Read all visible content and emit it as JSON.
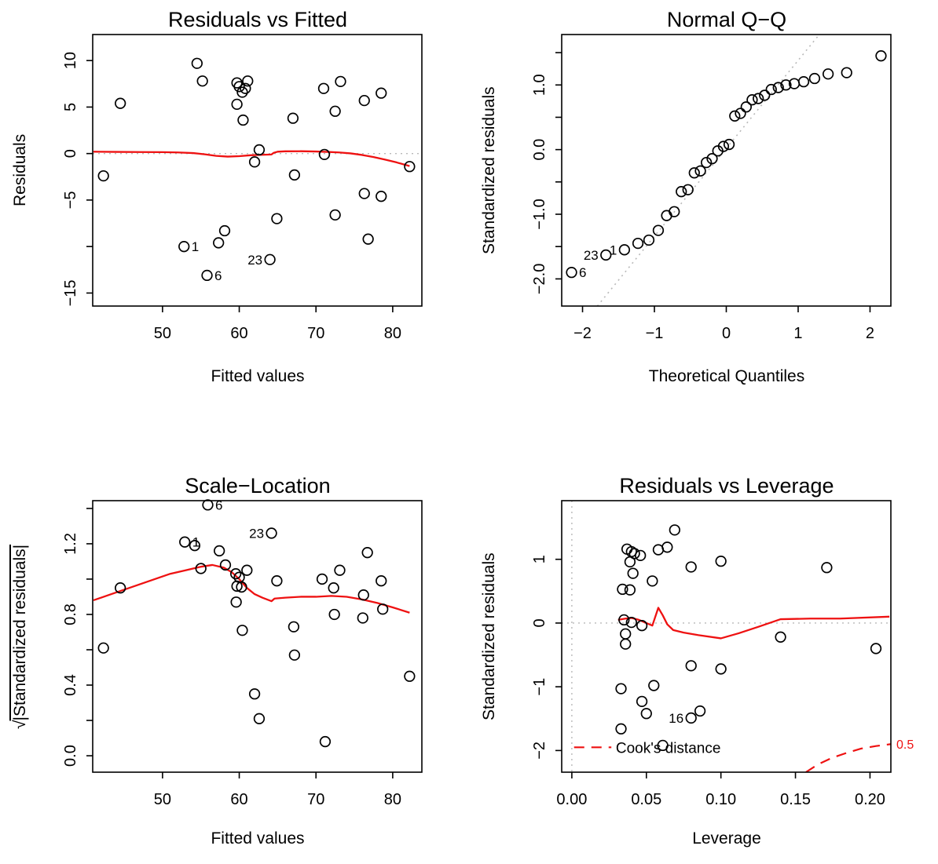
{
  "figure": {
    "background": "#ffffff",
    "accent_red": "#ee1111",
    "ref_gray": "#b9b9b9",
    "point_color": "#000000"
  },
  "chart_data": [
    {
      "type": "scatter",
      "panel": "top-left",
      "title": "Residuals vs Fitted",
      "xlabel": "Fitted values",
      "ylabel": "Residuals",
      "xlim": [
        40.9,
        83.8
      ],
      "ylim": [
        -16.4,
        12.8
      ],
      "grid": false,
      "xticks": [
        {
          "v": 50,
          "label": "50"
        },
        {
          "v": 60,
          "label": "60"
        },
        {
          "v": 70,
          "label": "70"
        },
        {
          "v": 80,
          "label": "80"
        }
      ],
      "yticks": [
        {
          "v": 10,
          "label": "10"
        },
        {
          "v": 5,
          "label": "5"
        },
        {
          "v": 0,
          "label": "0"
        },
        {
          "v": -5,
          "label": "−5"
        },
        {
          "v": -10,
          "label": ""
        },
        {
          "v": -15,
          "label": "−15"
        }
      ],
      "points": [
        [
          42.3,
          -2.4
        ],
        [
          44.5,
          5.4
        ],
        [
          52.8,
          -10.0
        ],
        [
          54.5,
          9.7
        ],
        [
          55.2,
          7.8
        ],
        [
          55.8,
          -13.1
        ],
        [
          57.3,
          -9.6
        ],
        [
          58.1,
          -8.3
        ],
        [
          59.7,
          7.6
        ],
        [
          60.0,
          7.2
        ],
        [
          61.1,
          7.8
        ],
        [
          60.4,
          6.6
        ],
        [
          59.7,
          5.3
        ],
        [
          60.5,
          3.6
        ],
        [
          62.0,
          -0.9
        ],
        [
          62.6,
          0.4
        ],
        [
          64.0,
          -11.4
        ],
        [
          64.9,
          -7.0
        ],
        [
          67.0,
          3.8
        ],
        [
          67.2,
          -2.3
        ],
        [
          71.0,
          7.0
        ],
        [
          71.1,
          -0.1
        ],
        [
          72.5,
          4.55
        ],
        [
          72.5,
          -6.6
        ],
        [
          73.2,
          7.75
        ],
        [
          76.3,
          5.7
        ],
        [
          76.3,
          -4.3
        ],
        [
          76.8,
          -9.2
        ],
        [
          78.5,
          6.5
        ],
        [
          78.5,
          -4.6
        ],
        [
          82.2,
          -1.4
        ],
        [
          60.8,
          7.0
        ]
      ],
      "point_labels": [
        {
          "label": "1",
          "x": 52.8,
          "y": -10.0,
          "side": "right"
        },
        {
          "label": "6",
          "x": 55.8,
          "y": -13.1,
          "side": "right"
        },
        {
          "label": "23",
          "x": 64.0,
          "y": -11.4,
          "side": "left"
        }
      ],
      "smooth_line": [
        [
          41.0,
          0.2
        ],
        [
          44,
          0.18
        ],
        [
          47,
          0.16
        ],
        [
          50,
          0.15
        ],
        [
          52,
          0.12
        ],
        [
          54,
          0.05
        ],
        [
          55.5,
          -0.08
        ],
        [
          57,
          -0.25
        ],
        [
          58.5,
          -0.33
        ],
        [
          60,
          -0.28
        ],
        [
          61.5,
          -0.18
        ],
        [
          63,
          -0.13
        ],
        [
          64.2,
          -0.1
        ],
        [
          64.5,
          0.08
        ],
        [
          65,
          0.2
        ],
        [
          66,
          0.24
        ],
        [
          68,
          0.25
        ],
        [
          70,
          0.22
        ],
        [
          71.5,
          0.18
        ],
        [
          73,
          0.12
        ],
        [
          74.5,
          0.02
        ],
        [
          76,
          -0.15
        ],
        [
          77.5,
          -0.38
        ],
        [
          79,
          -0.65
        ],
        [
          80.5,
          -0.95
        ],
        [
          82.2,
          -1.35
        ]
      ],
      "ref_lines": [
        {
          "orient": "h",
          "at": 0
        }
      ]
    },
    {
      "type": "scatter",
      "panel": "top-right",
      "title": "Normal Q−Q",
      "xlabel": "Theoretical Quantiles",
      "ylabel": "Standardized residuals",
      "xlim": [
        -2.29,
        2.29
      ],
      "ylim": [
        -2.42,
        1.78
      ],
      "grid": false,
      "xticks": [
        {
          "v": -2,
          "label": "−2"
        },
        {
          "v": -1,
          "label": "−1"
        },
        {
          "v": 0,
          "label": "0"
        },
        {
          "v": 1,
          "label": "1"
        },
        {
          "v": 2,
          "label": "2"
        }
      ],
      "yticks": [
        {
          "v": 1.5,
          "label": ""
        },
        {
          "v": 1.0,
          "label": "1.0"
        },
        {
          "v": 0.5,
          "label": ""
        },
        {
          "v": 0.0,
          "label": "0.0"
        },
        {
          "v": -0.5,
          "label": ""
        },
        {
          "v": -1.0,
          "label": "−1.0"
        },
        {
          "v": -1.5,
          "label": ""
        },
        {
          "v": -2.0,
          "label": "−2.0"
        }
      ],
      "points": [
        [
          -2.153,
          -1.9
        ],
        [
          -1.675,
          -1.63
        ],
        [
          -1.417,
          -1.55
        ],
        [
          -1.229,
          -1.45
        ],
        [
          -1.077,
          -1.4
        ],
        [
          -0.946,
          -1.25
        ],
        [
          -0.83,
          -1.02
        ],
        [
          -0.724,
          -0.96
        ],
        [
          -0.626,
          -0.65
        ],
        [
          -0.533,
          -0.62
        ],
        [
          -0.445,
          -0.36
        ],
        [
          -0.36,
          -0.33
        ],
        [
          -0.277,
          -0.2
        ],
        [
          -0.197,
          -0.14
        ],
        [
          -0.118,
          -0.02
        ],
        [
          -0.039,
          0.05
        ],
        [
          0.039,
          0.08
        ],
        [
          0.118,
          0.52
        ],
        [
          0.197,
          0.56
        ],
        [
          0.277,
          0.66
        ],
        [
          0.36,
          0.77
        ],
        [
          0.445,
          0.79
        ],
        [
          0.533,
          0.84
        ],
        [
          0.626,
          0.93
        ],
        [
          0.724,
          0.96
        ],
        [
          0.83,
          1.0
        ],
        [
          0.946,
          1.02
        ],
        [
          1.077,
          1.05
        ],
        [
          1.229,
          1.1
        ],
        [
          1.417,
          1.17
        ],
        [
          1.675,
          1.19
        ],
        [
          2.153,
          1.45
        ]
      ],
      "point_labels": [
        {
          "label": "6",
          "x": -2.153,
          "y": -1.9,
          "side": "right"
        },
        {
          "label": "23",
          "x": -1.675,
          "y": -1.63,
          "side": "left"
        },
        {
          "label": "1",
          "x": -1.417,
          "y": -1.55,
          "side": "left"
        }
      ],
      "qq_line": {
        "slope": 1.36,
        "intercept": 0.02
      }
    },
    {
      "type": "scatter",
      "panel": "bottom-left",
      "title": "Scale−Location",
      "xlabel": "Fitted values",
      "ylabel": "√|Standardized residuals|",
      "ylabel_pre": "√",
      "ylabel_main": "|Standardized residuals|",
      "xlim": [
        40.9,
        83.8
      ],
      "ylim": [
        -0.093,
        1.444
      ],
      "grid": false,
      "xticks": [
        {
          "v": 50,
          "label": "50"
        },
        {
          "v": 60,
          "label": "60"
        },
        {
          "v": 70,
          "label": "70"
        },
        {
          "v": 80,
          "label": "80"
        }
      ],
      "yticks": [
        {
          "v": 0.0,
          "label": "0.0"
        },
        {
          "v": 0.2,
          "label": ""
        },
        {
          "v": 0.4,
          "label": "0.4"
        },
        {
          "v": 0.6,
          "label": ""
        },
        {
          "v": 0.8,
          "label": "0.8"
        },
        {
          "v": 1.0,
          "label": ""
        },
        {
          "v": 1.2,
          "label": "1.2"
        },
        {
          "v": 1.4,
          "label": ""
        }
      ],
      "points": [
        [
          42.3,
          0.61
        ],
        [
          44.5,
          0.95
        ],
        [
          52.9,
          1.21
        ],
        [
          54.2,
          1.19
        ],
        [
          55.0,
          1.06
        ],
        [
          55.9,
          1.42
        ],
        [
          57.4,
          1.16
        ],
        [
          58.2,
          1.08
        ],
        [
          59.55,
          1.03
        ],
        [
          59.7,
          0.96
        ],
        [
          60.3,
          0.955
        ],
        [
          61.0,
          1.05
        ],
        [
          59.6,
          0.87
        ],
        [
          60.4,
          0.71
        ],
        [
          62.0,
          0.35
        ],
        [
          62.6,
          0.21
        ],
        [
          64.2,
          1.26
        ],
        [
          64.9,
          0.99
        ],
        [
          67.1,
          0.73
        ],
        [
          67.2,
          0.57
        ],
        [
          70.8,
          1.0
        ],
        [
          71.2,
          0.08
        ],
        [
          72.3,
          0.95
        ],
        [
          72.4,
          0.8
        ],
        [
          73.1,
          1.05
        ],
        [
          76.2,
          0.91
        ],
        [
          76.1,
          0.78
        ],
        [
          76.7,
          1.15
        ],
        [
          78.5,
          0.99
        ],
        [
          78.7,
          0.83
        ],
        [
          82.2,
          0.45
        ],
        [
          60.0,
          1.01
        ]
      ],
      "point_labels": [
        {
          "label": "1",
          "x": 52.9,
          "y": 1.21,
          "side": "right"
        },
        {
          "label": "6",
          "x": 55.9,
          "y": 1.42,
          "side": "right"
        },
        {
          "label": "23",
          "x": 64.2,
          "y": 1.26,
          "side": "left"
        }
      ],
      "smooth_line": [
        [
          41.0,
          0.88
        ],
        [
          43,
          0.91
        ],
        [
          45,
          0.94
        ],
        [
          47,
          0.97
        ],
        [
          49,
          1.0
        ],
        [
          51,
          1.03
        ],
        [
          53,
          1.05
        ],
        [
          55,
          1.07
        ],
        [
          56.5,
          1.08
        ],
        [
          58,
          1.065
        ],
        [
          59,
          1.04
        ],
        [
          60,
          1.0
        ],
        [
          61,
          0.95
        ],
        [
          62,
          0.915
        ],
        [
          63,
          0.895
        ],
        [
          64.2,
          0.875
        ],
        [
          64.6,
          0.89
        ],
        [
          66,
          0.895
        ],
        [
          68,
          0.9
        ],
        [
          70,
          0.9
        ],
        [
          72,
          0.905
        ],
        [
          74,
          0.9
        ],
        [
          76,
          0.885
        ],
        [
          78,
          0.865
        ],
        [
          80,
          0.84
        ],
        [
          82.2,
          0.81
        ]
      ],
      "ref_lines": []
    },
    {
      "type": "scatter",
      "panel": "bottom-right",
      "title": "Residuals vs Leverage",
      "xlabel": "Leverage",
      "ylabel": "Standardized residuals",
      "xlim": [
        -0.0068,
        0.214
      ],
      "ylim": [
        -2.34,
        1.92
      ],
      "grid": false,
      "xticks": [
        {
          "v": 0.0,
          "label": "0.00"
        },
        {
          "v": 0.05,
          "label": "0.05"
        },
        {
          "v": 0.1,
          "label": "0.10"
        },
        {
          "v": 0.15,
          "label": "0.15"
        },
        {
          "v": 0.2,
          "label": "0.20"
        }
      ],
      "yticks": [
        {
          "v": 1,
          "label": "1"
        },
        {
          "v": 0,
          "label": "0"
        },
        {
          "v": -1,
          "label": "−1"
        },
        {
          "v": -2,
          "label": "−2"
        }
      ],
      "points": [
        [
          0.037,
          1.16
        ],
        [
          0.04,
          1.12
        ],
        [
          0.042,
          1.09
        ],
        [
          0.046,
          1.06
        ],
        [
          0.039,
          0.96
        ],
        [
          0.058,
          1.15
        ],
        [
          0.064,
          1.19
        ],
        [
          0.069,
          1.46
        ],
        [
          0.08,
          0.88
        ],
        [
          0.1,
          0.97
        ],
        [
          0.171,
          0.87
        ],
        [
          0.041,
          0.78
        ],
        [
          0.054,
          0.66
        ],
        [
          0.034,
          0.53
        ],
        [
          0.039,
          0.52
        ],
        [
          0.035,
          0.05
        ],
        [
          0.04,
          0.01
        ],
        [
          0.047,
          -0.04
        ],
        [
          0.036,
          -0.17
        ],
        [
          0.036,
          -0.33
        ],
        [
          0.14,
          -0.22
        ],
        [
          0.204,
          -0.4
        ],
        [
          0.08,
          -0.67
        ],
        [
          0.1,
          -0.72
        ],
        [
          0.033,
          -1.03
        ],
        [
          0.055,
          -0.98
        ],
        [
          0.047,
          -1.23
        ],
        [
          0.05,
          -1.42
        ],
        [
          0.08,
          -1.49
        ],
        [
          0.086,
          -1.38
        ],
        [
          0.033,
          -1.66
        ],
        [
          0.061,
          -1.92
        ]
      ],
      "point_labels": [
        {
          "label": "16",
          "x": 0.08,
          "y": -1.49,
          "side": "left"
        }
      ],
      "smooth_line": [
        [
          0.031,
          0.05
        ],
        [
          0.036,
          0.07
        ],
        [
          0.04,
          0.08
        ],
        [
          0.045,
          0.05
        ],
        [
          0.05,
          0.0
        ],
        [
          0.054,
          -0.04
        ],
        [
          0.058,
          0.24
        ],
        [
          0.061,
          0.12
        ],
        [
          0.064,
          -0.02
        ],
        [
          0.068,
          -0.11
        ],
        [
          0.075,
          -0.15
        ],
        [
          0.085,
          -0.19
        ],
        [
          0.1,
          -0.24
        ],
        [
          0.112,
          -0.16
        ],
        [
          0.125,
          -0.06
        ],
        [
          0.14,
          0.06
        ],
        [
          0.16,
          0.07
        ],
        [
          0.18,
          0.07
        ],
        [
          0.213,
          0.1
        ]
      ],
      "ref_lines": [
        {
          "orient": "h",
          "at": 0
        },
        {
          "orient": "v",
          "at": 0
        }
      ],
      "cooks_line": [
        [
          0.157,
          -2.34
        ],
        [
          0.165,
          -2.22
        ],
        [
          0.174,
          -2.12
        ],
        [
          0.184,
          -2.04
        ],
        [
          0.194,
          -1.97
        ],
        [
          0.204,
          -1.93
        ],
        [
          0.214,
          -1.9
        ]
      ],
      "cooks_label": {
        "text": "0.5",
        "at_y": -1.91
      },
      "legend": {
        "label": "Cook's distance",
        "line_y": -1.95,
        "line_x1": 0.0015,
        "line_x2": 0.0265,
        "text_x": 0.0295
      }
    }
  ]
}
